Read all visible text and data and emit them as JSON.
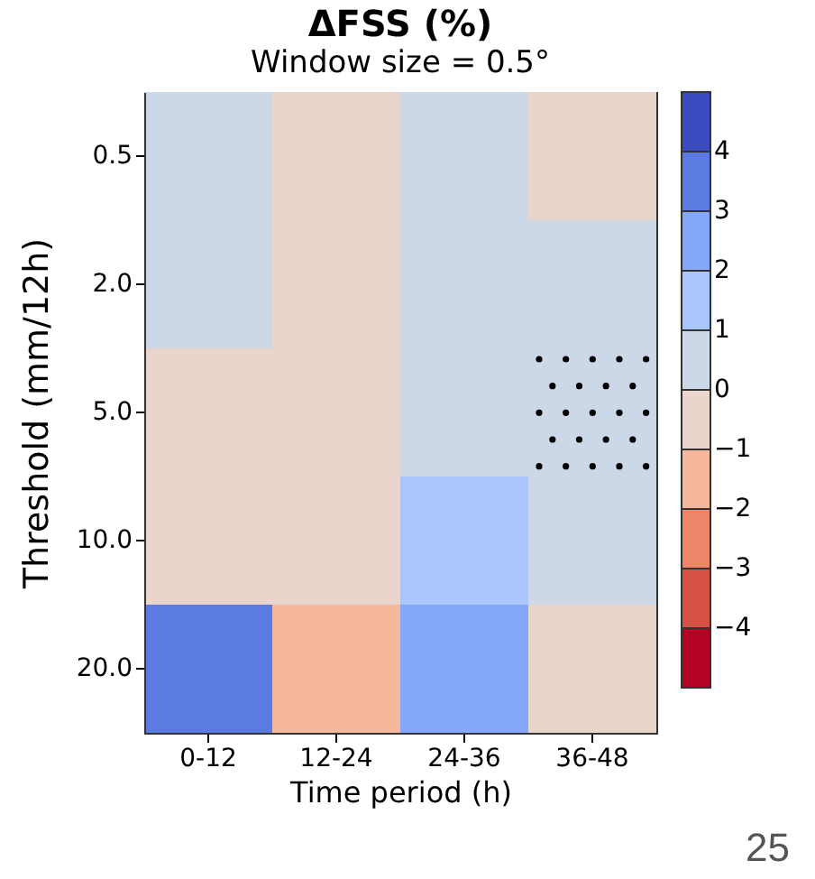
{
  "chart_data": {
    "type": "heatmap",
    "title": "ΔFSS (%)",
    "subtitle": "Window size = 0.5°",
    "xlabel": "Time period (h)",
    "ylabel": "Threshold   (mm/12h)",
    "categories": [
      "0-12",
      "12-24",
      "24-36",
      "36-48"
    ],
    "y_categories": [
      "0.5",
      "2.0",
      "5.0",
      "10.0",
      "20.0"
    ],
    "cells": [
      [
        0.5,
        -0.5,
        0.5,
        -0.5
      ],
      [
        0.5,
        -0.5,
        0.5,
        0.5
      ],
      [
        -0.5,
        -0.5,
        0.5,
        0.5
      ],
      [
        -0.5,
        -0.5,
        1.5,
        0.5
      ],
      [
        3.5,
        -1.5,
        2.5,
        -0.5
      ]
    ],
    "clim": [
      -5,
      5
    ],
    "cticks": [
      {
        "value": -4,
        "label": "−4"
      },
      {
        "value": -3,
        "label": "−3"
      },
      {
        "value": -2,
        "label": "−2"
      },
      {
        "value": -1,
        "label": "−1"
      },
      0,
      1,
      2,
      3,
      4
    ],
    "annotations": [
      "25"
    ]
  }
}
